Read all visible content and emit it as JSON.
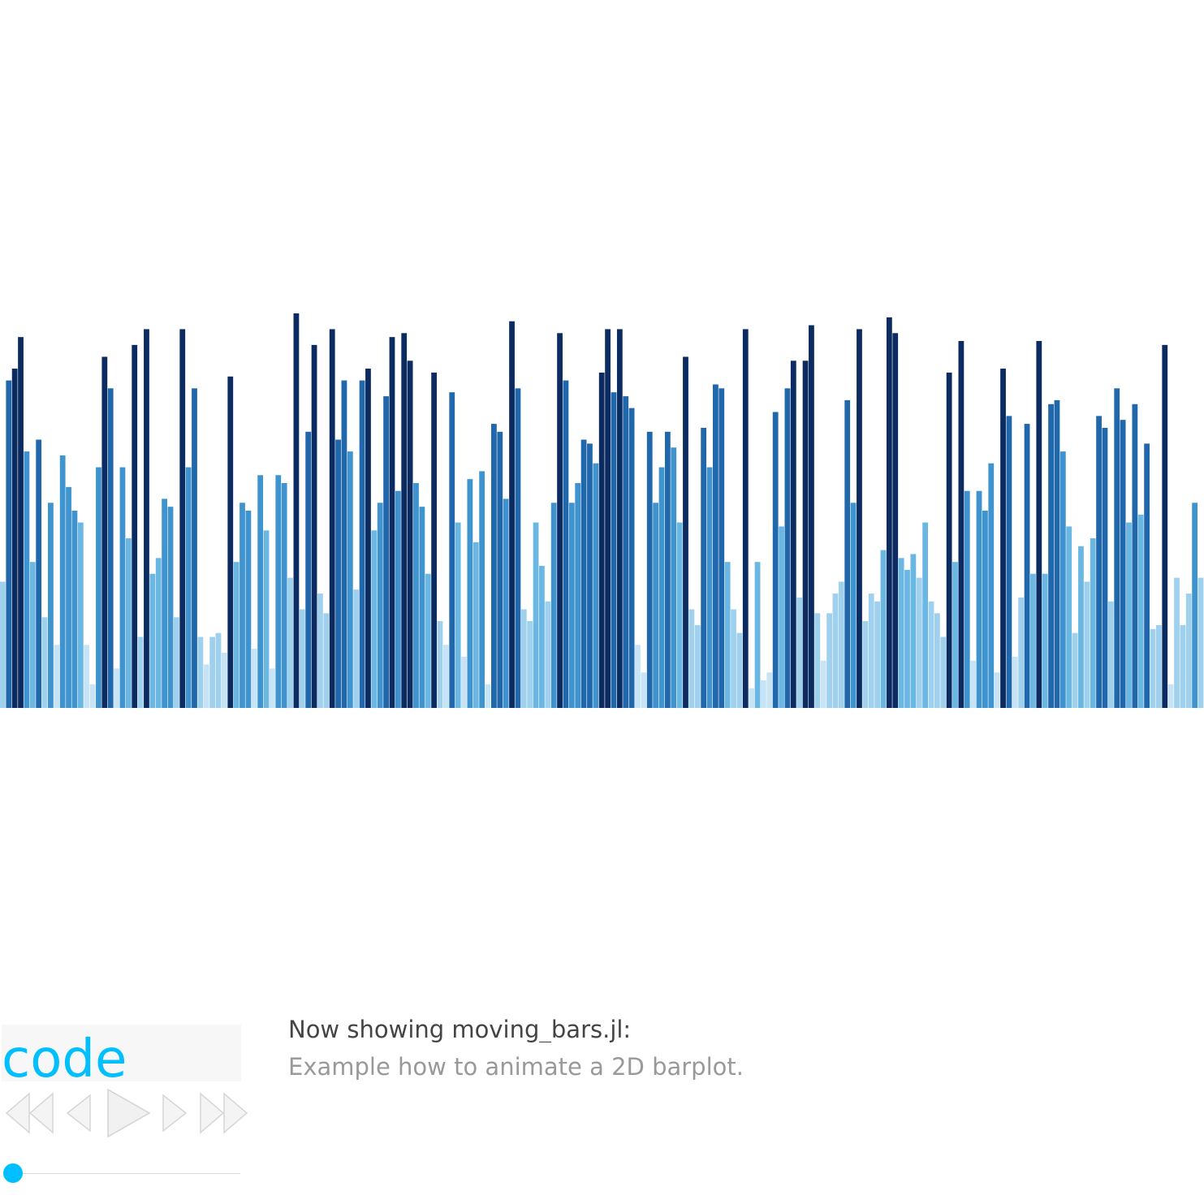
{
  "chart_data": {
    "type": "bar",
    "ylim": [
      0,
      1
    ],
    "colormap": [
      "#c6e4f5",
      "#9fd1ee",
      "#6bb7e3",
      "#3f94cf",
      "#2067ab",
      "#0c2c61"
    ],
    "values": [
      0.32,
      0.83,
      0.86,
      0.94,
      0.65,
      0.37,
      0.68,
      0.23,
      0.52,
      0.16,
      0.64,
      0.56,
      0.5,
      0.47,
      0.16,
      0.06,
      0.61,
      0.89,
      0.81,
      0.1,
      0.61,
      0.43,
      0.92,
      0.18,
      0.96,
      0.34,
      0.38,
      0.53,
      0.51,
      0.23,
      0.96,
      0.61,
      0.81,
      0.18,
      0.11,
      0.18,
      0.19,
      0.14,
      0.84,
      0.37,
      0.52,
      0.5,
      0.15,
      0.59,
      0.45,
      0.1,
      0.59,
      0.57,
      0.33,
      1.0,
      0.25,
      0.7,
      0.92,
      0.29,
      0.24,
      0.96,
      0.68,
      0.83,
      0.65,
      0.3,
      0.83,
      0.86,
      0.45,
      0.52,
      0.79,
      0.94,
      0.55,
      0.95,
      0.88,
      0.57,
      0.51,
      0.34,
      0.85,
      0.22,
      0.16,
      0.8,
      0.47,
      0.13,
      0.58,
      0.42,
      0.6,
      0.06,
      0.72,
      0.7,
      0.53,
      0.98,
      0.81,
      0.25,
      0.22,
      0.47,
      0.36,
      0.27,
      0.52,
      0.95,
      0.83,
      0.52,
      0.57,
      0.68,
      0.67,
      0.62,
      0.85,
      0.96,
      0.8,
      0.96,
      0.79,
      0.76,
      0.16,
      0.09,
      0.7,
      0.52,
      0.61,
      0.7,
      0.66,
      0.47,
      0.89,
      0.25,
      0.21,
      0.71,
      0.61,
      0.82,
      0.81,
      0.37,
      0.25,
      0.19,
      0.96,
      0.05,
      0.37,
      0.07,
      0.09,
      0.75,
      0.46,
      0.81,
      0.88,
      0.28,
      0.88,
      0.97,
      0.24,
      0.12,
      0.24,
      0.29,
      0.32,
      0.78,
      0.52,
      0.96,
      0.22,
      0.29,
      0.27,
      0.4,
      0.99,
      0.95,
      0.38,
      0.35,
      0.39,
      0.33,
      0.47,
      0.27,
      0.24,
      0.18,
      0.85,
      0.37,
      0.93,
      0.55,
      0.12,
      0.55,
      0.5,
      0.62,
      0.09,
      0.86,
      0.74,
      0.13,
      0.28,
      0.72,
      0.34,
      0.93,
      0.34,
      0.77,
      0.78,
      0.65,
      0.46,
      0.19,
      0.41,
      0.32,
      0.43,
      0.74,
      0.71,
      0.27,
      0.81,
      0.73,
      0.47,
      0.77,
      0.49,
      0.67,
      0.2,
      0.21,
      0.92,
      0.06,
      0.33,
      0.21,
      0.29,
      0.52,
      0.33
    ]
  },
  "code_button": {
    "label": "code"
  },
  "controls": {
    "icons": [
      "first-frame-icon",
      "previous-frame-icon",
      "play-icon",
      "next-frame-icon",
      "last-frame-icon"
    ]
  },
  "slider": {
    "value": 0
  },
  "caption": {
    "title": "Now showing moving_bars.jl:",
    "description": "Example how to animate a 2D barplot."
  }
}
